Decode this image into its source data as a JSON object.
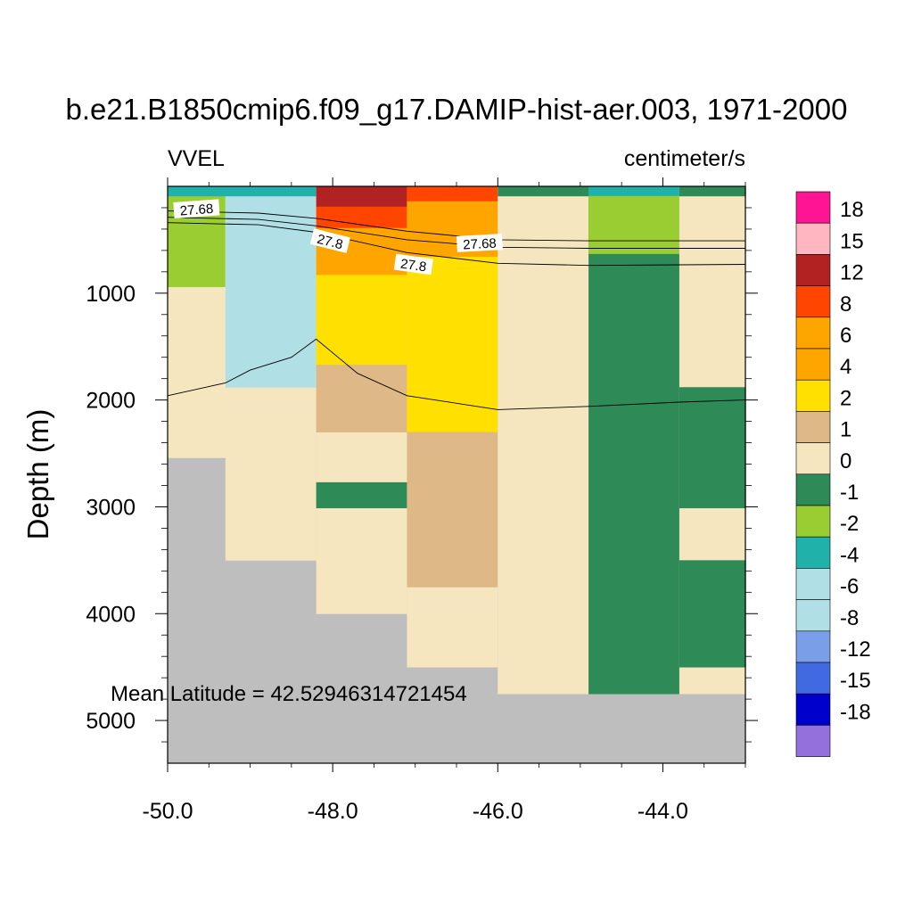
{
  "chart_data": {
    "type": "heatmap",
    "title": "b.e21.B1850cmip6.f09_g17.DAMIP-hist-aer.003, 1971-2000",
    "left_string": "VVEL",
    "right_string": "centimeter/s",
    "ylabel": "Depth (m)",
    "xlabel": "",
    "xlim": [
      -50.0,
      -43.0
    ],
    "ylim": [
      0,
      5400
    ],
    "y_reversed": true,
    "grid": false,
    "legend_position": "right",
    "x_ticks": [
      {
        "value": -50,
        "label": "-50.0"
      },
      {
        "value": -48,
        "label": "-48.0"
      },
      {
        "value": -46,
        "label": "-46.0"
      },
      {
        "value": -44,
        "label": "-44.0"
      }
    ],
    "y_ticks": [
      {
        "value": 1000,
        "label": "1000"
      },
      {
        "value": 2000,
        "label": "2000"
      },
      {
        "value": 3000,
        "label": "3000"
      },
      {
        "value": 4000,
        "label": "4000"
      },
      {
        "value": 5000,
        "label": "5000"
      }
    ],
    "annotation": "Mean Latitude = 42.52946314721454",
    "colorbar": {
      "labels": [
        "18",
        "15",
        "12",
        "8",
        "6",
        "4",
        "2",
        "1",
        "0",
        "-1",
        "-2",
        "-4",
        "-6",
        "-8",
        "-12",
        "-15",
        "-18"
      ],
      "colors": [
        "#ff1493",
        "#ffb6c1",
        "#b22222",
        "#ff4500",
        "#ffa500",
        "#ffa500",
        "#ffe000",
        "#deb887",
        "#f5e6c0",
        "#2e8b57",
        "#9acd32",
        "#20b2aa",
        "#b0e0e6",
        "#b0e0e6",
        "#7b9ee8",
        "#4169e1",
        "#0000cd",
        "#9370db"
      ]
    },
    "colors": {
      "missing": "#bebebe",
      "cream": "#f5e6c0",
      "green": "#2e8b57",
      "yellowgreen": "#9acd32",
      "teal": "#20b2aa",
      "lightblue": "#b0e0e6",
      "tan": "#deb887",
      "yellow": "#ffe000",
      "orange": "#ffa500",
      "redorange": "#ff4500",
      "darkred": "#b22222"
    },
    "cells": [
      {
        "x0": -50.0,
        "x1": -48.2,
        "y0": 0,
        "y1": 5400,
        "c": "missing"
      },
      {
        "x0": -50.0,
        "x1": -49.3,
        "y0": 0,
        "y1": 2540,
        "c": "cream"
      },
      {
        "x0": -50.0,
        "x1": -49.3,
        "y0": 90,
        "y1": 940,
        "c": "yellowgreen"
      },
      {
        "x0": -49.3,
        "x1": -48.2,
        "y0": 0,
        "y1": 3500,
        "c": "cream"
      },
      {
        "x0": -49.3,
        "x1": -48.2,
        "y0": 90,
        "y1": 1880,
        "c": "lightblue"
      },
      {
        "x0": -50.0,
        "x1": -48.2,
        "y0": 0,
        "y1": 90,
        "c": "teal"
      },
      {
        "x0": -48.2,
        "x1": -47.1,
        "y0": 0,
        "y1": 5400,
        "c": "missing"
      },
      {
        "x0": -48.2,
        "x1": -47.1,
        "y0": 0,
        "y1": 4000,
        "c": "cream"
      },
      {
        "x0": -48.2,
        "x1": -47.1,
        "y0": 0,
        "y1": 190,
        "c": "darkred"
      },
      {
        "x0": -48.2,
        "x1": -47.1,
        "y0": 190,
        "y1": 390,
        "c": "redorange"
      },
      {
        "x0": -48.2,
        "x1": -47.1,
        "y0": 390,
        "y1": 830,
        "c": "orange"
      },
      {
        "x0": -48.2,
        "x1": -47.1,
        "y0": 830,
        "y1": 1670,
        "c": "yellow"
      },
      {
        "x0": -48.2,
        "x1": -47.1,
        "y0": 1670,
        "y1": 2300,
        "c": "tan"
      },
      {
        "x0": -48.2,
        "x1": -47.1,
        "y0": 2770,
        "y1": 3010,
        "c": "green"
      },
      {
        "x0": -47.1,
        "x1": -46.0,
        "y0": 0,
        "y1": 5400,
        "c": "missing"
      },
      {
        "x0": -47.1,
        "x1": -46.0,
        "y0": 0,
        "y1": 4500,
        "c": "cream"
      },
      {
        "x0": -47.1,
        "x1": -46.0,
        "y0": 0,
        "y1": 140,
        "c": "redorange"
      },
      {
        "x0": -47.1,
        "x1": -46.0,
        "y0": 140,
        "y1": 660,
        "c": "orange"
      },
      {
        "x0": -47.1,
        "x1": -46.0,
        "y0": 660,
        "y1": 2300,
        "c": "yellow"
      },
      {
        "x0": -47.1,
        "x1": -46.0,
        "y0": 2300,
        "y1": 3750,
        "c": "tan"
      },
      {
        "x0": -46.0,
        "x1": -44.9,
        "y0": 0,
        "y1": 5400,
        "c": "missing"
      },
      {
        "x0": -46.0,
        "x1": -44.9,
        "y0": 0,
        "y1": 4750,
        "c": "cream"
      },
      {
        "x0": -46.0,
        "x1": -44.9,
        "y0": 0,
        "y1": 90,
        "c": "green"
      },
      {
        "x0": -44.9,
        "x1": -43.8,
        "y0": 0,
        "y1": 5400,
        "c": "missing"
      },
      {
        "x0": -44.9,
        "x1": -43.8,
        "y0": 0,
        "y1": 4750,
        "c": "green"
      },
      {
        "x0": -44.9,
        "x1": -43.8,
        "y0": 0,
        "y1": 90,
        "c": "teal"
      },
      {
        "x0": -44.9,
        "x1": -43.8,
        "y0": 90,
        "y1": 630,
        "c": "yellowgreen"
      },
      {
        "x0": -43.8,
        "x1": -43.0,
        "y0": 0,
        "y1": 5400,
        "c": "missing"
      },
      {
        "x0": -43.8,
        "x1": -43.0,
        "y0": 0,
        "y1": 4750,
        "c": "cream"
      },
      {
        "x0": -43.8,
        "x1": -43.0,
        "y0": 0,
        "y1": 90,
        "c": "green"
      },
      {
        "x0": -43.8,
        "x1": -43.0,
        "y0": 1880,
        "y1": 3010,
        "c": "green"
      },
      {
        "x0": -43.8,
        "x1": -43.0,
        "y0": 3500,
        "y1": 4500,
        "c": "green"
      }
    ],
    "contours": [
      {
        "label": "",
        "points": [
          [
            -50.0,
            230
          ],
          [
            -48.9,
            250
          ],
          [
            -48.2,
            300
          ],
          [
            -47.1,
            420
          ],
          [
            -46.0,
            500
          ],
          [
            -44.9,
            510
          ],
          [
            -43.0,
            510
          ]
        ]
      },
      {
        "label": "",
        "points": [
          [
            -50.0,
            290
          ],
          [
            -48.9,
            310
          ],
          [
            -48.2,
            370
          ],
          [
            -47.1,
            500
          ],
          [
            -46.0,
            570
          ],
          [
            -44.9,
            580
          ],
          [
            -43.0,
            580
          ]
        ]
      },
      {
        "label": "",
        "points": [
          [
            -50.0,
            340
          ],
          [
            -48.9,
            360
          ],
          [
            -48.2,
            430
          ],
          [
            -47.1,
            620
          ],
          [
            -46.0,
            720
          ],
          [
            -44.9,
            740
          ],
          [
            -43.0,
            730
          ]
        ]
      },
      {
        "label": "",
        "points": [
          [
            -50.0,
            1960
          ],
          [
            -49.3,
            1840
          ],
          [
            -49.0,
            1720
          ],
          [
            -48.5,
            1600
          ],
          [
            -48.2,
            1430
          ],
          [
            -47.7,
            1750
          ],
          [
            -47.1,
            1960
          ],
          [
            -46.0,
            2090
          ],
          [
            -44.9,
            2060
          ],
          [
            -43.8,
            2020
          ],
          [
            -43.0,
            2000
          ]
        ]
      }
    ],
    "contour_labels": [
      {
        "text": "27.68",
        "x": -49.65,
        "y": 210,
        "rot": -4
      },
      {
        "text": "27.8",
        "x": -48.03,
        "y": 510,
        "rot": 14
      },
      {
        "text": "27.68",
        "x": -46.22,
        "y": 530,
        "rot": -3
      },
      {
        "text": "27.8",
        "x": -47.02,
        "y": 730,
        "rot": 8
      }
    ]
  }
}
